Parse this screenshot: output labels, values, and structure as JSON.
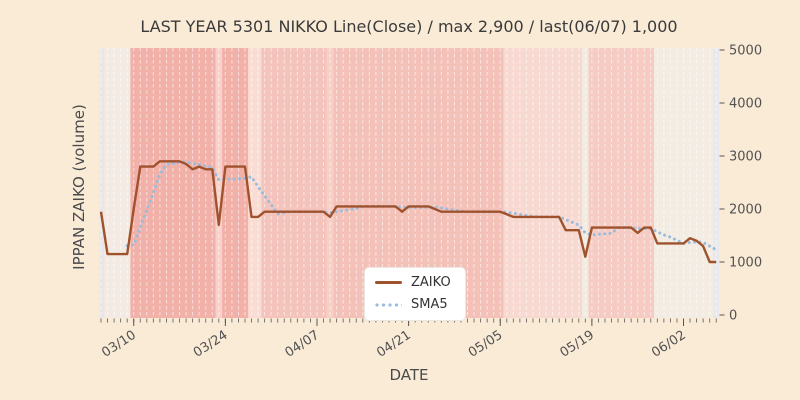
{
  "page_background": "#faebd7",
  "chart_data": {
    "type": "line",
    "title": "LAST YEAR 5301 NIKKO Line(Close) / max 2,900 / last(06/07) 1,000",
    "xlabel": "DATE",
    "ylabel": "IPPAN ZAIKO (volume)",
    "ylim": [
      0,
      5000
    ],
    "yticks": [
      0,
      1000,
      2000,
      3000,
      4000,
      5000
    ],
    "xtick_labels": [
      "03/10",
      "03/24",
      "04/07",
      "04/21",
      "05/05",
      "05/19",
      "06/02"
    ],
    "grid": "white dashed vertical line per day",
    "legend": {
      "position": "lower center",
      "entries": [
        "ZAIKO",
        "SMA5"
      ]
    },
    "dates": [
      "03/05",
      "03/06",
      "03/07",
      "03/08",
      "03/09",
      "03/10",
      "03/11",
      "03/12",
      "03/13",
      "03/14",
      "03/15",
      "03/16",
      "03/17",
      "03/18",
      "03/19",
      "03/20",
      "03/21",
      "03/22",
      "03/23",
      "03/24",
      "03/25",
      "03/26",
      "03/27",
      "03/28",
      "03/29",
      "03/30",
      "03/31",
      "04/01",
      "04/02",
      "04/03",
      "04/04",
      "04/05",
      "04/06",
      "04/07",
      "04/08",
      "04/09",
      "04/10",
      "04/11",
      "04/12",
      "04/13",
      "04/14",
      "04/15",
      "04/16",
      "04/17",
      "04/18",
      "04/19",
      "04/20",
      "04/21",
      "04/22",
      "04/23",
      "04/24",
      "04/25",
      "04/26",
      "04/27",
      "04/28",
      "04/29",
      "04/30",
      "05/01",
      "05/02",
      "05/03",
      "05/04",
      "05/05",
      "05/06",
      "05/07",
      "05/08",
      "05/09",
      "05/10",
      "05/11",
      "05/12",
      "05/13",
      "05/14",
      "05/15",
      "05/16",
      "05/17",
      "05/18",
      "05/19",
      "05/20",
      "05/21",
      "05/22",
      "05/23",
      "05/24",
      "05/25",
      "05/26",
      "05/27",
      "05/28",
      "05/29",
      "05/30",
      "05/31",
      "06/01",
      "06/02",
      "06/03",
      "06/04",
      "06/05",
      "06/06",
      "06/07"
    ],
    "series": [
      {
        "name": "ZAIKO",
        "color": "#a0522d",
        "line_style": "solid",
        "values": [
          1950,
          1150,
          1150,
          1150,
          1150,
          2000,
          2800,
          2800,
          2800,
          2900,
          2900,
          2900,
          2900,
          2850,
          2750,
          2800,
          2750,
          2750,
          1700,
          2800,
          2800,
          2800,
          2800,
          1850,
          1850,
          1950,
          1950,
          1950,
          1950,
          1950,
          1950,
          1950,
          1950,
          1950,
          1950,
          1850,
          2050,
          2050,
          2050,
          2050,
          2050,
          2050,
          2050,
          2050,
          2050,
          2050,
          1950,
          2050,
          2050,
          2050,
          2050,
          2000,
          1950,
          1950,
          1950,
          1950,
          1950,
          1950,
          1950,
          1950,
          1950,
          1950,
          1900,
          1850,
          1850,
          1850,
          1850,
          1850,
          1850,
          1850,
          1850,
          1600,
          1600,
          1600,
          1100,
          1650,
          1650,
          1650,
          1650,
          1650,
          1650,
          1650,
          1550,
          1650,
          1650,
          1350,
          1350,
          1350,
          1350,
          1350,
          1450,
          1400,
          1300,
          1000,
          1000
        ]
      },
      {
        "name": "SMA5",
        "color": "#9bbcdc",
        "line_style": "dotted",
        "derived": "5-day moving average of ZAIKO"
      }
    ],
    "background_bands": [
      {
        "from": "03/05",
        "to": "03/05",
        "color": "#e8e6e8"
      },
      {
        "from": "03/06",
        "to": "03/09",
        "color": "#f3eae3"
      },
      {
        "from": "03/10",
        "to": "03/22",
        "color": "#f1b0a8"
      },
      {
        "from": "03/23",
        "to": "03/23",
        "color": "#f8d2ca"
      },
      {
        "from": "03/24",
        "to": "03/27",
        "color": "#f1b0a8"
      },
      {
        "from": "03/28",
        "to": "03/29",
        "color": "#f9ddd5"
      },
      {
        "from": "03/30",
        "to": "04/08",
        "color": "#f4c3bb"
      },
      {
        "from": "04/09",
        "to": "04/09",
        "color": "#f7cfc7"
      },
      {
        "from": "04/10",
        "to": "05/05",
        "color": "#f4c1b9"
      },
      {
        "from": "05/06",
        "to": "05/17",
        "color": "#f8d9d1"
      },
      {
        "from": "05/18",
        "to": "05/18",
        "color": "#f1ebe1"
      },
      {
        "from": "05/19",
        "to": "05/28",
        "color": "#f6cbc3"
      },
      {
        "from": "05/29",
        "to": "06/06",
        "color": "#f2ece2"
      },
      {
        "from": "06/07",
        "to": "06/07",
        "color": "#e9e8ea"
      }
    ]
  }
}
